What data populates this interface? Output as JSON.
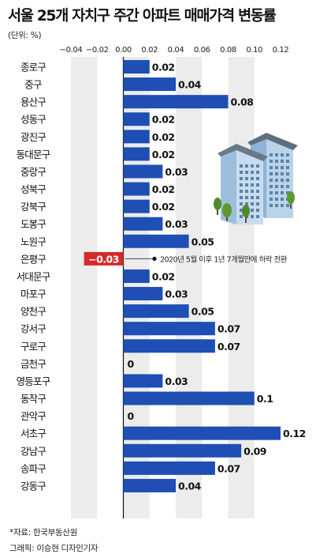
{
  "title": "서울 25개 자치구 주간 아파트 매매가격 변동률",
  "unit": "(단위: %)",
  "source": "*자료: 한국부동산원",
  "credit": "그래픽: 이승현 디자인기자",
  "colors": {
    "positive": "#1f4eb4",
    "negative": "#d42a2a",
    "band": "#ececec",
    "axis": "#111111"
  },
  "chart_data": {
    "type": "bar",
    "orientation": "horizontal",
    "categories": [
      "종로구",
      "중구",
      "용산구",
      "성동구",
      "광진구",
      "동대문구",
      "중랑구",
      "성북구",
      "강북구",
      "도봉구",
      "노원구",
      "은평구",
      "서대문구",
      "마포구",
      "양천구",
      "강서구",
      "구로구",
      "금천구",
      "영등포구",
      "동작구",
      "관악구",
      "서초구",
      "강남구",
      "송파구",
      "강동구"
    ],
    "values": [
      0.02,
      0.04,
      0.08,
      0.02,
      0.02,
      0.02,
      0.03,
      0.02,
      0.02,
      0.03,
      0.05,
      -0.03,
      0.02,
      0.03,
      0.05,
      0.07,
      0.07,
      0,
      0.03,
      0.1,
      0,
      0.12,
      0.09,
      0.07,
      0.04
    ],
    "value_labels": [
      "0.02",
      "0.04",
      "0.08",
      "0.02",
      "0.02",
      "0.02",
      "0.03",
      "0.02",
      "0.02",
      "0.03",
      "0.05",
      "−0.03",
      "0.02",
      "0.03",
      "0.05",
      "0.07",
      "0.07",
      "0",
      "0.03",
      "0.1",
      "0",
      "0.12",
      "0.09",
      "0.07",
      "0.04"
    ],
    "xlim": [
      -0.04,
      0.12
    ],
    "ticks": [
      -0.04,
      -0.02,
      0,
      0.02,
      0.04,
      0.06,
      0.08,
      0.1,
      0.12
    ],
    "tick_labels": [
      "−0.04",
      "−0.02",
      "0.00",
      "0.02",
      "0.04",
      "0.06",
      "0.08",
      "0.10",
      "0.12"
    ],
    "annotation": {
      "category": "은평구",
      "text": "2020년 5월 이후 1년 7개월만에 하락 전환"
    }
  }
}
